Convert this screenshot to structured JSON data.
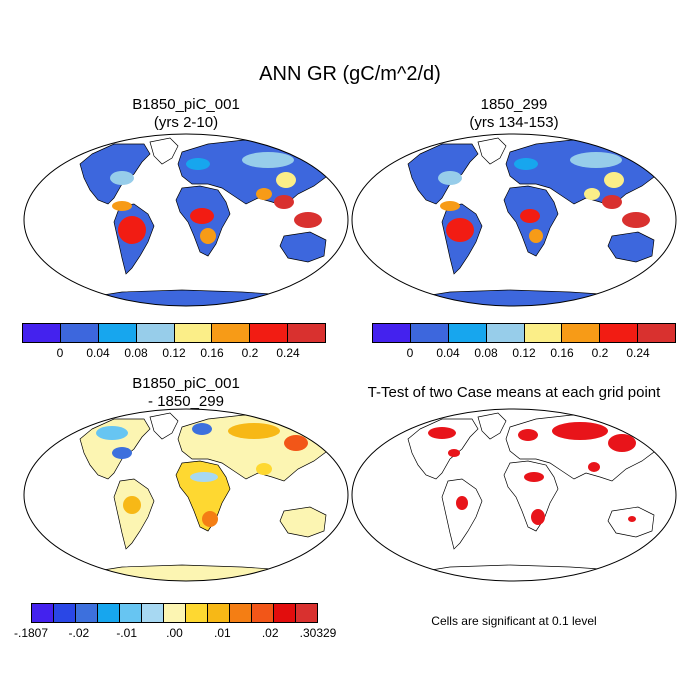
{
  "title": "ANN GR (gC/m^2/d)",
  "panels": [
    {
      "title": "B1850_piC_001",
      "subtitle": "(yrs 2-10)"
    },
    {
      "title": "1850_299",
      "subtitle": "(yrs 134-153)"
    },
    {
      "title": "B1850_piC_001",
      "subtitle": "- 1850_299"
    },
    {
      "title": "T-Test of two Case means at each grid point",
      "subtitle": ""
    }
  ],
  "colorbar_abs": {
    "colors": [
      "#4422ee",
      "#3d67dd",
      "#17a6ee",
      "#97cdea",
      "#fbee88",
      "#f79b17",
      "#f21c13",
      "#d9312f"
    ],
    "labels": [
      "0",
      "0.04",
      "0.08",
      "0.12",
      "0.16",
      "0.2",
      "0.24"
    ]
  },
  "colorbar_diff": {
    "colors": [
      "#4422ee",
      "#2a47e6",
      "#3d70dd",
      "#17a6ee",
      "#67c5f2",
      "#a7d8f2",
      "#fcf5b2",
      "#fed831",
      "#f7b816",
      "#f47e14",
      "#f25618",
      "#e20d0d",
      "#d9312f"
    ],
    "labels": [
      "-.1807",
      "-.02",
      "-.01",
      ".00",
      ".01",
      ".02",
      ".30329"
    ]
  },
  "significance_note": "Cells are significant at 0.1 level",
  "colors": {
    "ocean": "#ffffff",
    "coast": "#000000",
    "antarctica_abs": "#3d67dd",
    "antarctica_diff": "#fcf5b2",
    "significant": "#e8141a"
  }
}
